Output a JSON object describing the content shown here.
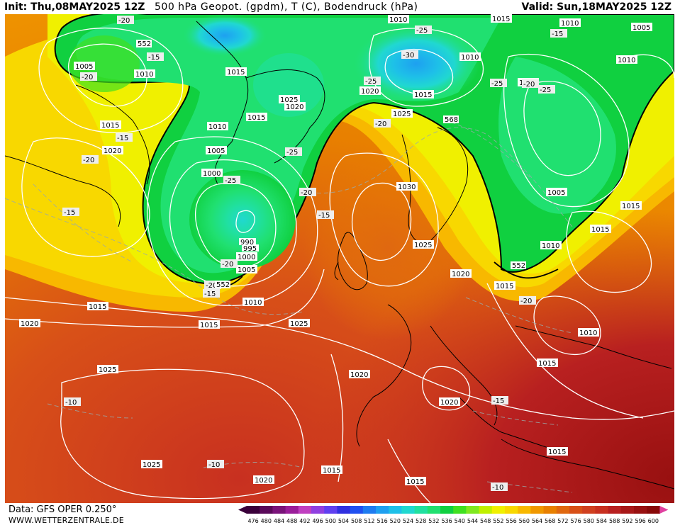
{
  "header": {
    "init": "Init: Thu,08MAY2025 12Z",
    "title": "500 hPa Geopot. (gpdm), T (C), Bodendruck (hPa)",
    "valid": "Valid: Sun,18MAY2025 12Z"
  },
  "footer": {
    "data_source": "Data: GFS OPER 0.250°",
    "website": "WWW.WETTERZENTRALE.DE"
  },
  "colorbar": {
    "labels": [
      "476",
      "480",
      "484",
      "488",
      "492",
      "496",
      "500",
      "504",
      "508",
      "512",
      "516",
      "520",
      "524",
      "528",
      "532",
      "536",
      "540",
      "544",
      "548",
      "552",
      "556",
      "560",
      "564",
      "568",
      "572",
      "576",
      "580",
      "584",
      "588",
      "592",
      "596",
      "600"
    ],
    "colors": [
      "#3a003a",
      "#5a0a5a",
      "#7a147a",
      "#9a1e9a",
      "#c040c0",
      "#9040e0",
      "#6040f0",
      "#3030e0",
      "#2050f0",
      "#1e7cf0",
      "#1ea0f0",
      "#1ec0e8",
      "#20d8d0",
      "#20e0a0",
      "#20e070",
      "#10d040",
      "#40e020",
      "#80e820",
      "#c0f000",
      "#f0f000",
      "#f8d800",
      "#f8b800",
      "#f09800",
      "#e88000",
      "#e06810",
      "#d85018",
      "#d04020",
      "#c83020",
      "#b82020",
      "#a81818",
      "#981010",
      "#880808"
    ]
  },
  "isobar_labels": [
    "1005",
    "1010",
    "1015",
    "1020",
    "1025",
    "1030",
    "1000",
    "995",
    "990"
  ],
  "temperature_labels": [
    "-10",
    "-15",
    "-20",
    "-25",
    "-30"
  ],
  "geopotential_labels": [
    "552",
    "568"
  ],
  "map_labels": {
    "isobars": [
      "1005",
      "1010",
      "1015",
      "1015",
      "1020",
      "1020",
      "1015",
      "1010",
      "1005",
      "1000",
      "990",
      "995",
      "1000",
      "1005",
      "1010",
      "1015",
      "1015",
      "1020",
      "1025",
      "1025",
      "1020",
      "1025",
      "1020",
      "1030",
      "1025",
      "1020",
      "1015",
      "1010",
      "1015",
      "1015",
      "1010",
      "1005",
      "1010",
      "1015",
      "1010",
      "1015",
      "1025",
      "1020",
      "1015",
      "1015",
      "1020",
      "1010",
      "1015",
      "1010",
      "1005",
      "1010",
      "1025",
      "1020"
    ],
    "temps": [
      "-20",
      "-15",
      "-20",
      "-15",
      "-20",
      "-15",
      "-25",
      "-25",
      "-20",
      "-25",
      "-20",
      "-15",
      "-20",
      "-25",
      "-30",
      "-25",
      "-25",
      "-20",
      "-25",
      "-20",
      "-15",
      "-10",
      "-10",
      "-10",
      "-15",
      "-20",
      "-15"
    ],
    "geopot": [
      "552",
      "568",
      "552",
      "552",
      "568"
    ]
  }
}
